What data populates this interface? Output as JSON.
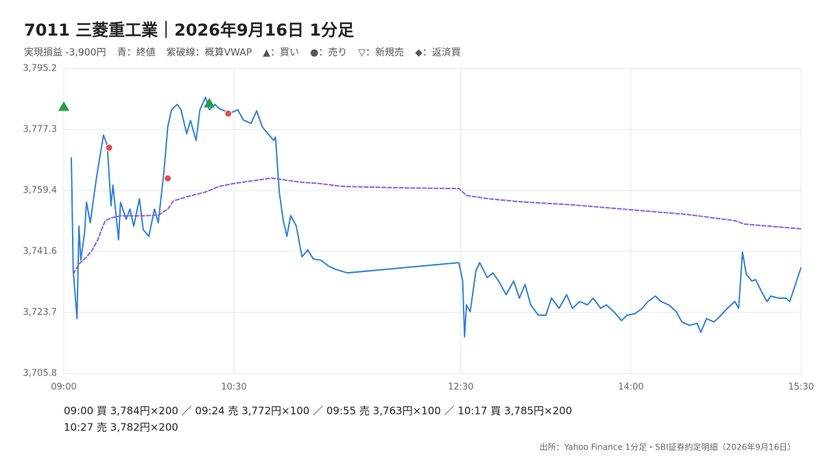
{
  "chart_data": {
    "type": "line",
    "title": "7011 三菱重工業｜2026年9月16日 1分足",
    "legend_notes": [
      "実現損益 -3,900円",
      "青：終値",
      "紫破線：概算VWAP",
      "▲：買い",
      "●：売り",
      "▽：新規売",
      "◆：返済買"
    ],
    "xlim": [
      "09:00",
      "15:30"
    ],
    "xticks": [
      "09:00",
      "10:30",
      "12:30",
      "14:00",
      "15:30"
    ],
    "ylim": [
      3705.8,
      3795.2
    ],
    "yticks": [
      {
        "value": 3705.8,
        "label": "3,705.8"
      },
      {
        "value": 3723.7,
        "label": "3,723.7"
      },
      {
        "value": 3741.6,
        "label": "3,741.6"
      },
      {
        "value": 3759.4,
        "label": "3,759.4"
      },
      {
        "value": 3777.3,
        "label": "3,777.3"
      },
      {
        "value": 3795.2,
        "label": "3,795.2"
      }
    ],
    "grid": true,
    "series": [
      {
        "color": "#2e7fd9",
        "style": "solid",
        "x": [
          "09:04",
          "09:05",
          "09:07",
          "09:08",
          "09:09",
          "09:11",
          "09:12",
          "09:14",
          "09:17",
          "09:19",
          "09:21",
          "09:23",
          "09:25",
          "09:26",
          "09:29",
          "09:30",
          "09:33",
          "09:35",
          "09:37",
          "09:40",
          "09:42",
          "09:45",
          "09:48",
          "09:50",
          "09:53",
          "09:55",
          "09:57",
          "10:00",
          "10:02",
          "10:05",
          "10:07",
          "10:10",
          "10:12",
          "10:15",
          "10:17",
          "10:20",
          "10:22",
          "10:25",
          "10:28",
          "10:32",
          "10:35",
          "10:39",
          "10:42",
          "10:45",
          "10:48",
          "10:51",
          "10:52",
          "10:54",
          "10:56",
          "10:58",
          "11:00",
          "11:03",
          "11:06",
          "11:09",
          "11:12",
          "11:16",
          "11:20",
          "11:24",
          "11:30",
          "12:29",
          "12:31",
          "12:32",
          "12:33",
          "12:35",
          "12:38",
          "12:40",
          "12:44",
          "12:47",
          "12:50",
          "12:54",
          "12:58",
          "13:01",
          "13:04",
          "13:07",
          "13:11",
          "13:15",
          "13:18",
          "13:22",
          "13:26",
          "13:29",
          "13:33",
          "13:37",
          "13:40",
          "13:44",
          "13:47",
          "13:51",
          "13:55",
          "13:58",
          "14:02",
          "14:06",
          "14:09",
          "14:13",
          "14:16",
          "14:20",
          "14:24",
          "14:27",
          "14:31",
          "14:35",
          "14:37",
          "14:40",
          "14:44",
          "14:47",
          "14:51",
          "14:55",
          "14:57",
          "14:59",
          "15:01",
          "15:04",
          "15:06",
          "15:09",
          "15:12",
          "15:14",
          "15:18",
          "15:22",
          "15:24",
          "15:30"
        ],
        "values": [
          3769.1,
          3735.9,
          3721.9,
          3749.0,
          3739.0,
          3747.0,
          3756.0,
          3750.0,
          3762.1,
          3769.1,
          3775.7,
          3772.7,
          3755.0,
          3761.0,
          3745.0,
          3756.0,
          3751.0,
          3754.0,
          3749.0,
          3757.0,
          3748.0,
          3746.0,
          3754.0,
          3750.0,
          3765.1,
          3778.1,
          3783.1,
          3784.7,
          3783.1,
          3776.1,
          3780.0,
          3774.1,
          3783.1,
          3786.8,
          3783.1,
          3784.7,
          3783.5,
          3782.8,
          3782.1,
          3783.1,
          3780.1,
          3779.1,
          3782.8,
          3778.1,
          3776.1,
          3774.1,
          3775.1,
          3759.0,
          3751.0,
          3746.0,
          3752.1,
          3749.0,
          3740.0,
          3742.0,
          3739.4,
          3739.0,
          3737.3,
          3736.3,
          3735.3,
          3738.3,
          3732.9,
          3716.5,
          3725.9,
          3723.9,
          3735.9,
          3738.3,
          3733.9,
          3735.3,
          3732.9,
          3728.9,
          3732.9,
          3727.9,
          3731.9,
          3725.9,
          3722.9,
          3722.9,
          3727.9,
          3724.9,
          3728.9,
          3724.9,
          3726.9,
          3725.9,
          3727.9,
          3724.9,
          3725.9,
          3723.9,
          3721.3,
          3722.9,
          3723.3,
          3724.9,
          3726.9,
          3728.5,
          3726.9,
          3725.9,
          3723.9,
          3720.9,
          3719.9,
          3720.5,
          3717.9,
          3721.9,
          3720.9,
          3722.5,
          3724.9,
          3726.9,
          3724.9,
          3741.4,
          3734.9,
          3732.9,
          3733.3,
          3729.9,
          3726.9,
          3728.5,
          3727.9,
          3727.9,
          3726.9,
          3736.9
        ]
      },
      {
        "color": "#8a5ce6",
        "style": "dashed",
        "x": [
          "09:05",
          "09:08",
          "09:12",
          "09:15",
          "09:18",
          "09:20",
          "09:22",
          "09:25",
          "09:30",
          "09:40",
          "09:50",
          "09:55",
          "09:58",
          "10:05",
          "10:15",
          "10:22",
          "10:30",
          "10:40",
          "10:50",
          "10:55",
          "11:05",
          "11:15",
          "11:25",
          "11:30",
          "12:00",
          "12:29",
          "12:33",
          "12:45",
          "13:00",
          "13:30",
          "14:00",
          "14:30",
          "14:55",
          "15:00",
          "15:30"
        ],
        "values": [
          3734.9,
          3737.9,
          3739.9,
          3741.9,
          3745.0,
          3748.0,
          3750.6,
          3751.4,
          3752.0,
          3752.0,
          3752.2,
          3754.0,
          3756.4,
          3757.6,
          3759.0,
          3760.6,
          3761.5,
          3762.3,
          3763.1,
          3762.7,
          3761.9,
          3761.5,
          3760.8,
          3760.6,
          3760.2,
          3760.0,
          3758.0,
          3757.0,
          3756.2,
          3755.2,
          3753.8,
          3752.4,
          3750.6,
          3749.6,
          3748.2
        ]
      },
      {
        "color": "#22a045",
        "style": "triangle",
        "x": [
          "09:00",
          "10:17"
        ],
        "values": [
          3784,
          3785
        ]
      },
      {
        "color": "#e54b4b",
        "style": "circle",
        "x": [
          "09:24",
          "09:55",
          "10:27"
        ],
        "values": [
          3772,
          3763,
          3782
        ]
      }
    ],
    "trade_log": [
      "09:00 買 3,784円×200 ／ 09:24 売 3,772円×100 ／ 09:55 売 3,763円×100 ／ 10:17 買 3,785円×200",
      "10:27 売 3,782円×200"
    ],
    "source": "出所：Yahoo Finance 1分足・SBI証券約定明細（2026年9月16日）"
  }
}
